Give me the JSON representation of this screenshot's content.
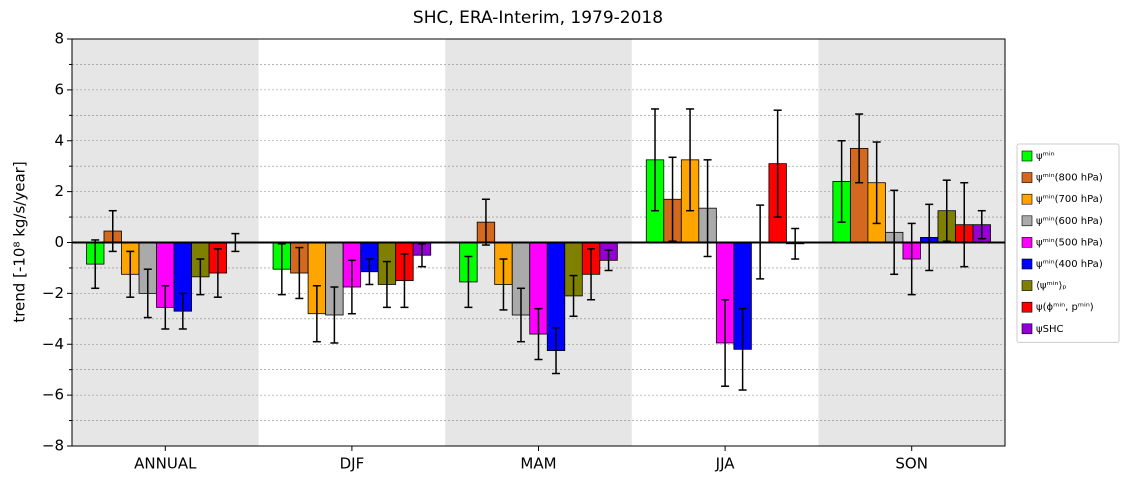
{
  "chart_data": {
    "type": "bar",
    "title": "SHC, ERA-Interim, 1979-2018",
    "ylabel": "trend [-10⁸ kg/s/year]",
    "categories": [
      "ANNUAL",
      "DJF",
      "MAM",
      "JJA",
      "SON"
    ],
    "ylim": [
      -8,
      8
    ],
    "yticks": [
      {
        "value": -8,
        "label": "−8"
      },
      {
        "value": -6,
        "label": "−6"
      },
      {
        "value": -4,
        "label": "−4"
      },
      {
        "value": -2,
        "label": "−2"
      },
      0,
      2,
      4,
      6,
      8
    ],
    "minor_yticks": [
      -7,
      -5,
      -3,
      -1,
      1,
      3,
      5,
      7
    ],
    "grid": true,
    "band_shading": "alternate",
    "legend": "right",
    "series": [
      {
        "name": "ψᵐⁱⁿ",
        "color": "#00ff00",
        "values": [
          -0.85,
          -1.05,
          -1.55,
          3.25,
          2.4
        ],
        "errors": [
          0.95,
          1.0,
          1.0,
          2.0,
          1.6
        ]
      },
      {
        "name": "ψᵐⁱⁿ(800 hPa)",
        "color": "#d2691e",
        "values": [
          0.45,
          -1.2,
          0.8,
          1.7,
          3.7
        ],
        "errors": [
          0.8,
          1.0,
          0.9,
          1.65,
          1.35
        ]
      },
      {
        "name": "ψᵐⁱⁿ(700 hPa)",
        "color": "#ffa500",
        "values": [
          -1.25,
          -2.8,
          -1.65,
          3.25,
          2.35
        ],
        "errors": [
          0.9,
          1.1,
          1.0,
          2.0,
          1.6
        ]
      },
      {
        "name": "ψᵐⁱⁿ(600 hPa)",
        "color": "#aaaaaa",
        "values": [
          -2.0,
          -2.85,
          -2.85,
          1.35,
          0.4
        ],
        "errors": [
          0.95,
          1.1,
          1.05,
          1.9,
          1.65
        ]
      },
      {
        "name": "ψᵐⁱⁿ(500 hPa)",
        "color": "#ff00ff",
        "values": [
          -2.55,
          -1.75,
          -3.6,
          -3.95,
          -0.65
        ],
        "errors": [
          0.85,
          1.05,
          1.0,
          1.7,
          1.4
        ]
      },
      {
        "name": "ψᵐⁱⁿ(400 hPa)",
        "color": "#0000ff",
        "values": [
          -2.7,
          -1.15,
          -4.25,
          -4.2,
          0.2
        ],
        "errors": [
          0.7,
          0.5,
          0.9,
          1.6,
          1.3
        ]
      },
      {
        "name": "⟨ψᵐⁱⁿ⟩ₚ",
        "color": "#808000",
        "values": [
          -1.35,
          -1.65,
          -2.1,
          0.02,
          1.25
        ],
        "errors": [
          0.7,
          0.9,
          0.8,
          1.45,
          1.2
        ]
      },
      {
        "name": "ψ(ϕᵐⁱⁿ, pᵐⁱⁿ)",
        "color": "#ff0000",
        "values": [
          -1.2,
          -1.5,
          -1.25,
          3.1,
          0.7
        ],
        "errors": [
          0.95,
          1.05,
          1.0,
          2.1,
          1.65
        ]
      },
      {
        "name": "ψSHC",
        "color": "#9400d3",
        "values": [
          0.0,
          -0.5,
          -0.7,
          -0.05,
          0.7
        ],
        "errors": [
          0.35,
          0.45,
          0.4,
          0.6,
          0.55
        ]
      }
    ]
  }
}
